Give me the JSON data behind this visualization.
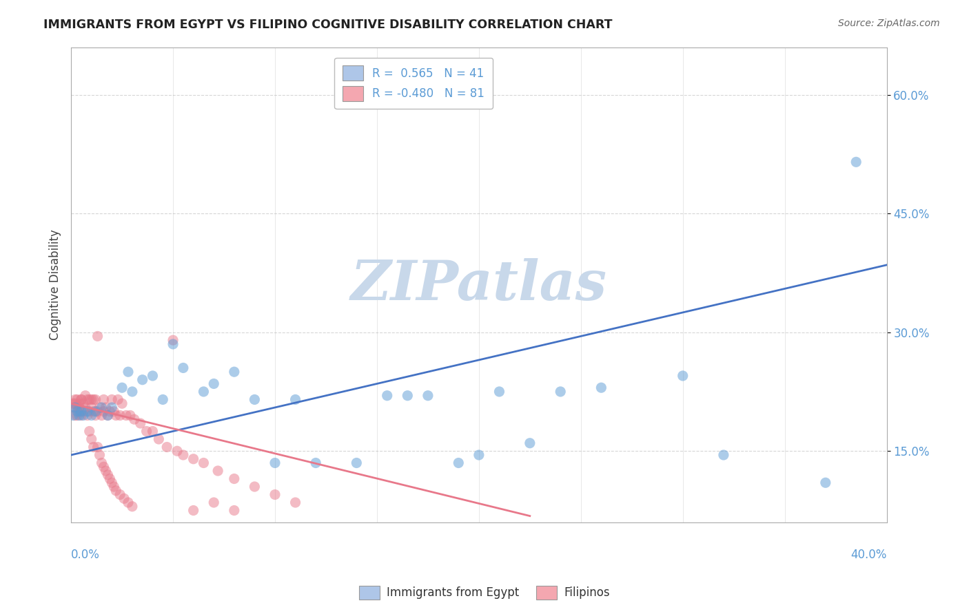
{
  "title": "IMMIGRANTS FROM EGYPT VS FILIPINO COGNITIVE DISABILITY CORRELATION CHART",
  "source": "Source: ZipAtlas.com",
  "ylabel": "Cognitive Disability",
  "ytick_vals": [
    0.15,
    0.3,
    0.45,
    0.6
  ],
  "xlim": [
    0.0,
    0.4
  ],
  "ylim": [
    0.06,
    0.66
  ],
  "legend_entries": [
    {
      "label": "R =  0.565   N = 41",
      "color": "#aec6e8"
    },
    {
      "label": "R = -0.480   N = 81",
      "color": "#f4a7b0"
    }
  ],
  "blue_color": "#5b9bd5",
  "pink_color": "#e8788a",
  "blue_line_color": "#4472c4",
  "pink_line_color": "#e8788a",
  "watermark": "ZIPatlas",
  "watermark_color": "#c8d8ea",
  "background_color": "#ffffff",
  "grid_color": "#cccccc",
  "blue_scatter_x": [
    0.001,
    0.002,
    0.003,
    0.004,
    0.005,
    0.006,
    0.008,
    0.01,
    0.012,
    0.015,
    0.018,
    0.02,
    0.025,
    0.028,
    0.03,
    0.035,
    0.04,
    0.045,
    0.05,
    0.055,
    0.065,
    0.07,
    0.08,
    0.09,
    0.1,
    0.11,
    0.12,
    0.14,
    0.155,
    0.165,
    0.175,
    0.19,
    0.2,
    0.21,
    0.225,
    0.24,
    0.26,
    0.3,
    0.32,
    0.37,
    0.385
  ],
  "blue_scatter_y": [
    0.195,
    0.205,
    0.2,
    0.195,
    0.2,
    0.195,
    0.2,
    0.195,
    0.2,
    0.205,
    0.195,
    0.205,
    0.23,
    0.25,
    0.225,
    0.24,
    0.245,
    0.215,
    0.285,
    0.255,
    0.225,
    0.235,
    0.25,
    0.215,
    0.135,
    0.215,
    0.135,
    0.135,
    0.22,
    0.22,
    0.22,
    0.135,
    0.145,
    0.225,
    0.16,
    0.225,
    0.23,
    0.245,
    0.145,
    0.11,
    0.515
  ],
  "pink_scatter_x": [
    0.001,
    0.001,
    0.002,
    0.002,
    0.002,
    0.003,
    0.003,
    0.003,
    0.004,
    0.004,
    0.004,
    0.005,
    0.005,
    0.005,
    0.006,
    0.006,
    0.007,
    0.007,
    0.008,
    0.008,
    0.009,
    0.009,
    0.01,
    0.01,
    0.011,
    0.011,
    0.012,
    0.012,
    0.013,
    0.013,
    0.014,
    0.015,
    0.016,
    0.016,
    0.017,
    0.018,
    0.019,
    0.02,
    0.021,
    0.022,
    0.023,
    0.024,
    0.025,
    0.027,
    0.029,
    0.031,
    0.034,
    0.037,
    0.04,
    0.043,
    0.047,
    0.052,
    0.055,
    0.06,
    0.065,
    0.072,
    0.08,
    0.09,
    0.1,
    0.11,
    0.05,
    0.06,
    0.07,
    0.08,
    0.009,
    0.01,
    0.011,
    0.013,
    0.014,
    0.015,
    0.016,
    0.017,
    0.018,
    0.019,
    0.02,
    0.021,
    0.022,
    0.024,
    0.026,
    0.028,
    0.03
  ],
  "pink_scatter_y": [
    0.21,
    0.205,
    0.215,
    0.195,
    0.21,
    0.205,
    0.215,
    0.195,
    0.21,
    0.205,
    0.2,
    0.215,
    0.195,
    0.215,
    0.2,
    0.21,
    0.205,
    0.22,
    0.195,
    0.215,
    0.2,
    0.215,
    0.205,
    0.215,
    0.2,
    0.215,
    0.195,
    0.215,
    0.2,
    0.295,
    0.205,
    0.195,
    0.215,
    0.2,
    0.205,
    0.195,
    0.2,
    0.215,
    0.2,
    0.195,
    0.215,
    0.195,
    0.21,
    0.195,
    0.195,
    0.19,
    0.185,
    0.175,
    0.175,
    0.165,
    0.155,
    0.15,
    0.145,
    0.14,
    0.135,
    0.125,
    0.115,
    0.105,
    0.095,
    0.085,
    0.29,
    0.075,
    0.085,
    0.075,
    0.175,
    0.165,
    0.155,
    0.155,
    0.145,
    0.135,
    0.13,
    0.125,
    0.12,
    0.115,
    0.11,
    0.105,
    0.1,
    0.095,
    0.09,
    0.085,
    0.08
  ],
  "blue_line_x0": 0.0,
  "blue_line_x1": 0.4,
  "blue_line_y0": 0.145,
  "blue_line_y1": 0.385,
  "pink_line_x0": 0.0,
  "pink_line_x1": 0.225,
  "pink_line_y0": 0.21,
  "pink_line_y1": 0.068,
  "footer_label_left": "Immigrants from Egypt",
  "footer_label_right": "Filipinos"
}
